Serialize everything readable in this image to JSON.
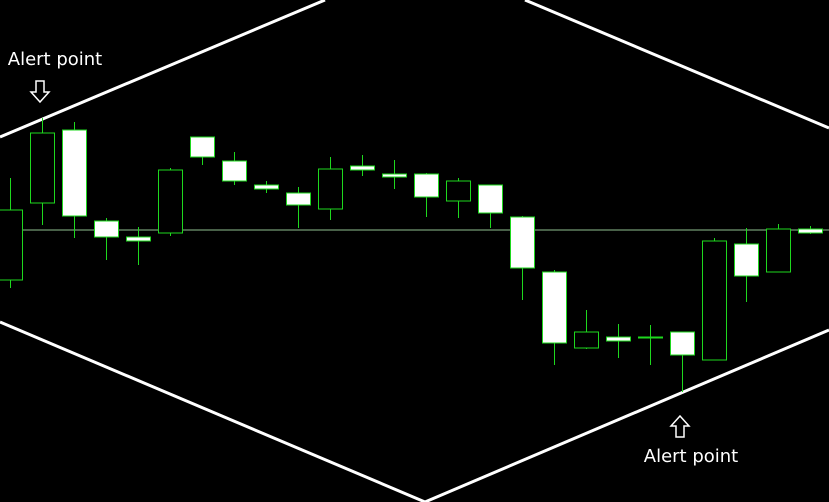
{
  "chart_data": {
    "type": "candlestick",
    "open": [
      222,
      299,
      372,
      281,
      265,
      269,
      365,
      341,
      317,
      309,
      293,
      336,
      328,
      328,
      301,
      317,
      285,
      230,
      154,
      165,
      164,
      170,
      142,
      258,
      230,
      273
    ],
    "high": [
      324,
      384,
      380,
      284,
      275,
      334,
      365,
      350,
      321,
      315,
      345,
      347,
      342,
      329,
      324,
      317,
      286,
      232,
      192,
      178,
      177,
      170,
      264,
      274,
      278,
      276
    ],
    "low": [
      214,
      277,
      264,
      242,
      237,
      266,
      337,
      317,
      309,
      274,
      282,
      326,
      313,
      285,
      284,
      274,
      202,
      137,
      153,
      144,
      137,
      110,
      142,
      200,
      230,
      268
    ],
    "close": [
      292,
      369,
      286,
      265,
      261,
      332,
      345,
      321,
      313,
      297,
      333,
      332,
      325,
      305,
      321,
      289,
      234,
      159,
      170,
      161,
      165,
      147,
      261,
      226,
      273,
      269
    ],
    "ylim": [
      0,
      502
    ],
    "up_color": "#000000",
    "down_color": "#ffffff",
    "line_color": "#1ed81e",
    "hline": 272,
    "hline_color": "#8fbf8f",
    "annotations": [
      {
        "text": "Alert point",
        "index": 1
      },
      {
        "text": "Alert point",
        "index": 21
      }
    ]
  }
}
